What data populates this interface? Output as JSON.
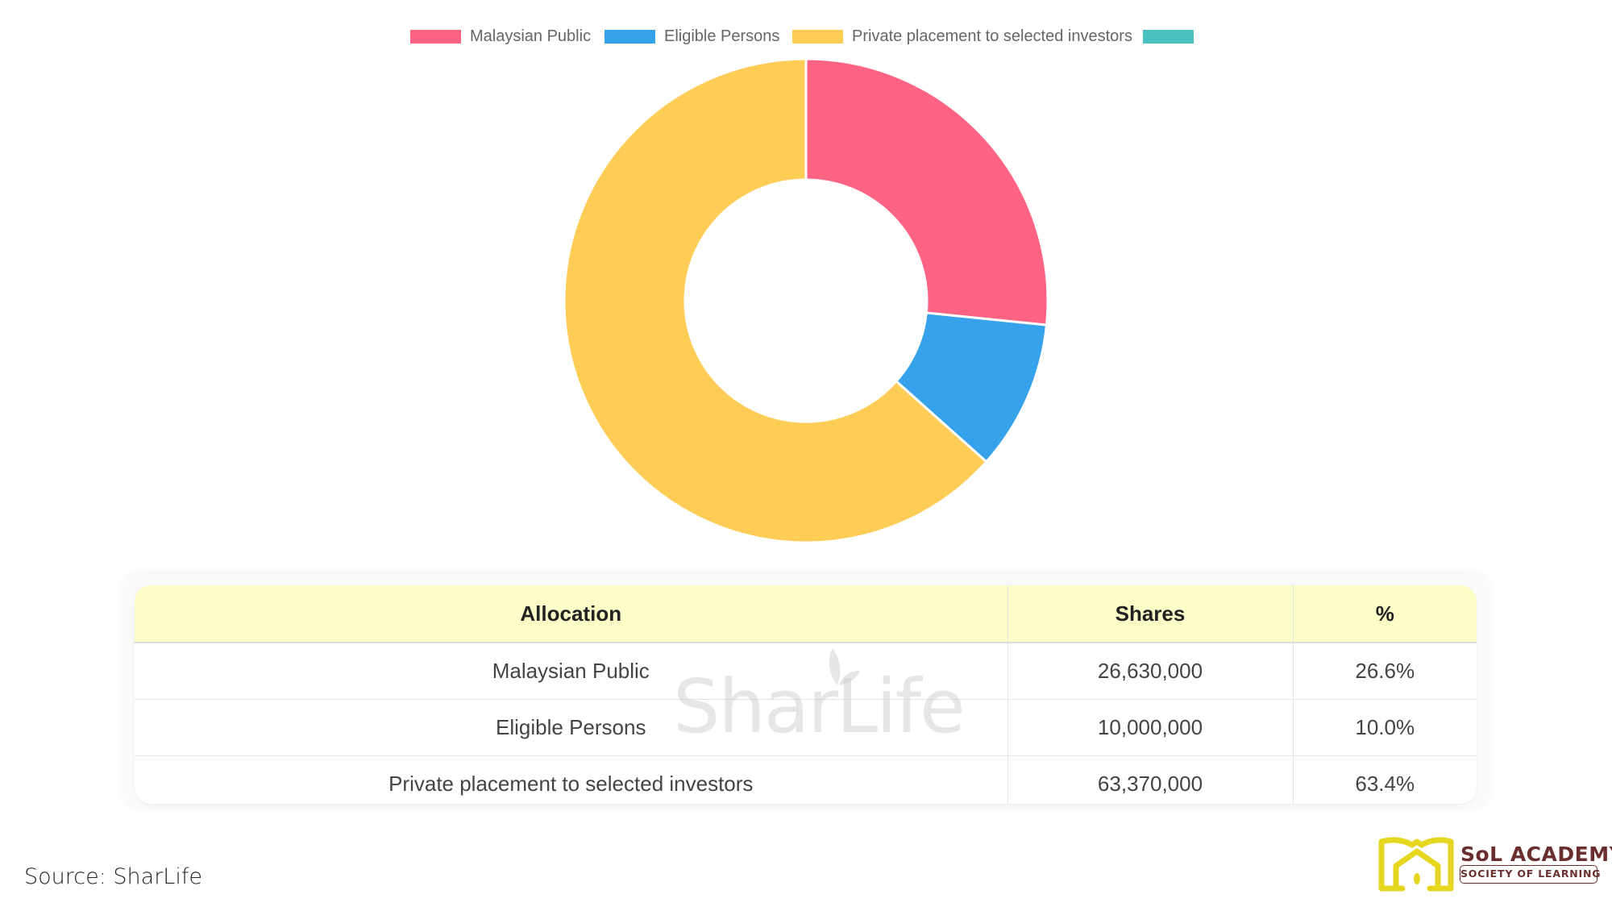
{
  "chart_data": {
    "type": "pie",
    "subtype": "doughnut",
    "title": "",
    "categories": [
      "Malaysian Public",
      "Eligible Persons",
      "Private placement to selected investors",
      ""
    ],
    "values": [
      26.6,
      10.0,
      63.4,
      0
    ],
    "shares": [
      26630000,
      10000000,
      63370000,
      0
    ],
    "colors": [
      "#ff6384",
      "#36a2eb",
      "#ffcd56",
      "#4bc0c0"
    ],
    "legend_position": "top"
  },
  "legend": [
    {
      "label": "Malaysian Public",
      "color": "#ff6384"
    },
    {
      "label": "Eligible Persons",
      "color": "#36a2eb"
    },
    {
      "label": "Private placement to selected investors",
      "color": "#ffcd56"
    },
    {
      "label": "",
      "color": "#4bc0c0"
    }
  ],
  "table": {
    "headers": [
      "Allocation",
      "Shares",
      "%"
    ],
    "rows": [
      [
        "Malaysian Public",
        "26,630,000",
        "26.6%"
      ],
      [
        "Eligible Persons",
        "10,000,000",
        "10.0%"
      ],
      [
        "Private placement to selected investors",
        "63,370,000",
        "63.4%"
      ]
    ]
  },
  "watermark": "SharLife",
  "source": "Source: SharLife",
  "logo": {
    "title": "SoL ACADEMY",
    "subtitle": "SOCIETY OF LEARNING",
    "icon": "house-book-icon",
    "icon_color": "#e6d620",
    "text_color": "#6b2e2e"
  }
}
